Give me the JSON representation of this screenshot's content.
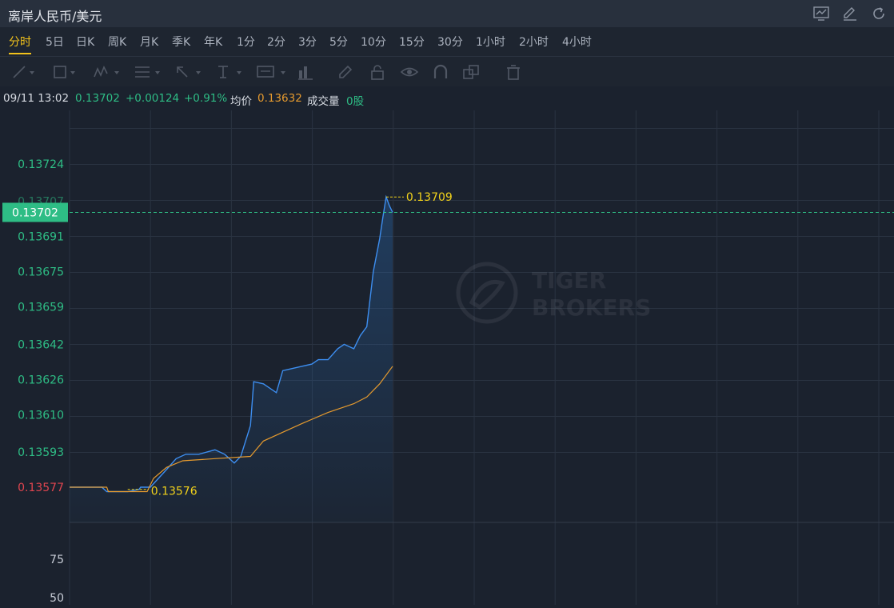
{
  "header": {
    "title": "离岸人民币/美元"
  },
  "header_icons": [
    "chart-icon",
    "edit-icon",
    "refresh-icon"
  ],
  "periods": [
    "分时",
    "5日",
    "日K",
    "周K",
    "月K",
    "季K",
    "年K",
    "1分",
    "2分",
    "3分",
    "5分",
    "10分",
    "15分",
    "30分",
    "1小时",
    "2小时",
    "4小时"
  ],
  "active_period": "分时",
  "toolbar_icons": [
    "line-tool-icon",
    "rect-tool-icon",
    "pattern-tool-icon",
    "fib-tool-icon",
    "arrow-tool-icon",
    "text-tool-icon",
    "note-tool-icon",
    "measure-tool-icon",
    "pen-tool-icon",
    "lock-icon",
    "eye-icon",
    "magnet-icon",
    "layers-icon",
    "trash-icon"
  ],
  "info": {
    "datetime": "09/11 13:02",
    "price": "0.13702",
    "change": "+0.00124",
    "change_pct": "+0.91%",
    "avg_label": "均价",
    "avg_value": "0.13632",
    "volume_label": "成交量",
    "volume_value": "0股"
  },
  "colors": {
    "up": "#2ebd85",
    "down": "#e0454f",
    "avg_line": "#e59a2e",
    "price_line": "#3d8ef0",
    "highlight": "#f2d21b",
    "background": "#1b222e"
  },
  "watermark": "TIGER BROKERS",
  "chart_data": {
    "type": "area",
    "y_ticks": [
      "0.13724",
      "0.13707",
      "0.13691",
      "0.13675",
      "0.13659",
      "0.13642",
      "0.13626",
      "0.13610",
      "0.13593",
      "0.13577"
    ],
    "ylim": [
      0.1356,
      0.1374
    ],
    "current_price_label": "0.13702",
    "prev_close_label": "0.13577",
    "high_label": "0.13709",
    "low_label": "0.13576",
    "volume_ticks": [
      "75",
      "50"
    ],
    "x_total": 100,
    "price_series": [
      [
        0,
        0.13577
      ],
      [
        10,
        0.13577
      ],
      [
        11.5,
        0.13575
      ],
      [
        18,
        0.13575
      ],
      [
        21.5,
        0.13576
      ],
      [
        22,
        0.13577
      ],
      [
        25,
        0.13577
      ],
      [
        30,
        0.13585
      ],
      [
        33,
        0.1359
      ],
      [
        36,
        0.13592
      ],
      [
        40,
        0.13592
      ],
      [
        45,
        0.13594
      ],
      [
        48,
        0.13592
      ],
      [
        51,
        0.13588
      ],
      [
        53,
        0.13591
      ],
      [
        56,
        0.13605
      ],
      [
        57,
        0.13625
      ],
      [
        60,
        0.13624
      ],
      [
        64,
        0.1362
      ],
      [
        66,
        0.1363
      ],
      [
        69,
        0.13631
      ],
      [
        72,
        0.13632
      ],
      [
        75,
        0.13633
      ],
      [
        77,
        0.13635
      ],
      [
        80,
        0.13635
      ],
      [
        83,
        0.1364
      ],
      [
        85,
        0.13642
      ],
      [
        88,
        0.1364
      ],
      [
        90,
        0.13646
      ],
      [
        92,
        0.1365
      ],
      [
        94,
        0.13675
      ],
      [
        96,
        0.1369
      ],
      [
        97,
        0.137
      ],
      [
        98,
        0.13709
      ],
      [
        99,
        0.13705
      ],
      [
        100,
        0.13702
      ]
    ],
    "avg_series": [
      [
        0,
        0.13577
      ],
      [
        11.5,
        0.13577
      ],
      [
        12,
        0.13575
      ],
      [
        24,
        0.13575
      ],
      [
        26,
        0.13581
      ],
      [
        30,
        0.13586
      ],
      [
        35,
        0.13589
      ],
      [
        45,
        0.1359
      ],
      [
        56,
        0.13591
      ],
      [
        60,
        0.13598
      ],
      [
        66,
        0.13602
      ],
      [
        72,
        0.13606
      ],
      [
        80,
        0.13611
      ],
      [
        88,
        0.13615
      ],
      [
        92,
        0.13618
      ],
      [
        96,
        0.13624
      ],
      [
        100,
        0.13632
      ]
    ]
  }
}
